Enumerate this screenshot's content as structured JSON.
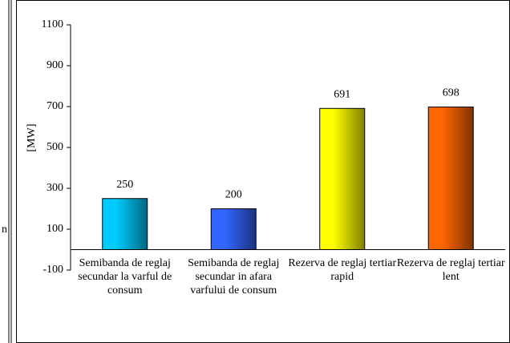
{
  "left_fragment": "n",
  "chart_data": {
    "type": "bar",
    "y_label": "[MW]",
    "categories": [
      "Semibanda de reglaj secundar la varful de consum",
      "Semibanda de reglaj secundar in afara varfului de consum",
      "Rezerva de reglaj tertiar rapid",
      "Rezerva de reglaj tertiar lent"
    ],
    "values": [
      250,
      200,
      691,
      698
    ],
    "colors": [
      "#00ccff",
      "#3366ff",
      "#ffff00",
      "#ff6600"
    ],
    "ylim": [
      -100,
      1100
    ],
    "yticks": [
      -100,
      100,
      300,
      500,
      700,
      900,
      1100
    ],
    "grid": false
  }
}
